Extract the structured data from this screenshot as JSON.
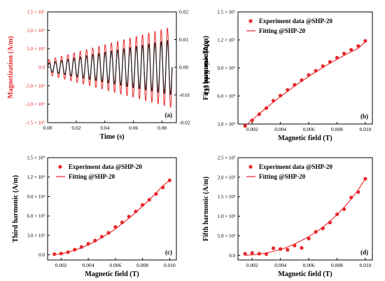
{
  "colors": {
    "red": "#e8262a",
    "dark": "#2a2a2a",
    "axis": "#000000"
  },
  "chart_data": [
    {
      "id": "a",
      "type": "line",
      "panel_label": "(a)",
      "xlabel": "Time (s)",
      "ylabel": "Magnetization (A/m)",
      "y2label": "Magnetic field (T)",
      "xlim": [
        0,
        0.09
      ],
      "ylim": [
        -150000,
        150000
      ],
      "y2lim": [
        -0.02,
        0.02
      ],
      "xticks": [
        "0.00",
        "0.02",
        "0.04",
        "0.06",
        "0.08"
      ],
      "yticks": [
        "1.5 × 10⁵",
        "1.0 × 10⁵",
        "5.0 × 10⁴",
        "0.0",
        "-5.0 × 10⁴",
        "-1.0 × 10⁵",
        "-1.5 × 10⁵"
      ],
      "y2ticks": [
        "0.02",
        "0.01",
        "0.00",
        "-0.01",
        "-0.02"
      ],
      "series": [
        {
          "axis": "left",
          "envelope_start": 20000,
          "envelope_end": 110000,
          "cycles": 20,
          "x_end": 0.087
        },
        {
          "axis": "right",
          "envelope_start": 0.0015,
          "envelope_end": 0.01,
          "cycles": 20,
          "x_end": 0.087
        }
      ]
    },
    {
      "id": "b",
      "type": "scatter",
      "panel_label": "(b)",
      "xlabel": "Magnetic field (T)",
      "ylabel": "First harmonic (A/m)",
      "xlim": [
        0.001,
        0.0105
      ],
      "ylim": [
        30000,
        150000
      ],
      "xticks": [
        "0.002",
        "0.004",
        "0.006",
        "0.008",
        "0.010"
      ],
      "yticks": [
        "1.5 × 10⁵",
        "1.2 × 10⁵",
        "9.0 × 10⁴",
        "6.0 × 10⁴",
        "3.0 × 10⁴"
      ],
      "legend": [
        "Experiment data @SHP-20",
        "Fitting @SHP-20"
      ],
      "x": [
        0.0015,
        0.002,
        0.0025,
        0.003,
        0.0035,
        0.004,
        0.0045,
        0.005,
        0.0055,
        0.006,
        0.0065,
        0.007,
        0.0075,
        0.008,
        0.0085,
        0.009,
        0.0095,
        0.01
      ],
      "y": [
        28000,
        34000,
        40500,
        47000,
        55000,
        60500,
        66500,
        72000,
        77000,
        82500,
        87000,
        92000,
        96500,
        101000,
        105500,
        109500,
        113500,
        119000
      ],
      "fit": [
        28000,
        34500,
        41000,
        47300,
        53400,
        59300,
        65000,
        70500,
        75800,
        80900,
        85800,
        90500,
        95000,
        99300,
        103400,
        107300,
        111000,
        118000
      ]
    },
    {
      "id": "c",
      "type": "scatter",
      "panel_label": "(c)",
      "xlabel": "Magnetic field (T)",
      "ylabel": "Third harmonic (A/m)",
      "xlim": [
        0.001,
        0.0105
      ],
      "ylim": [
        -800,
        15000
      ],
      "xticks": [
        "0.002",
        "0.004",
        "0.006",
        "0.008",
        "0.010"
      ],
      "yticks": [
        "1.5 × 10⁴",
        "1.2 × 10⁴",
        "9.0 × 10³",
        "6.0 × 10³",
        "3.0 × 10³",
        "0.0"
      ],
      "legend": [
        "Experiment data @SHP-20",
        "Fitting @SHP-20"
      ],
      "x": [
        0.0015,
        0.002,
        0.0025,
        0.003,
        0.0035,
        0.004,
        0.0045,
        0.005,
        0.0055,
        0.006,
        0.0065,
        0.007,
        0.0075,
        0.008,
        0.0085,
        0.009,
        0.0095,
        0.01
      ],
      "y": [
        100,
        200,
        400,
        800,
        1200,
        1700,
        2200,
        2800,
        3400,
        4300,
        5000,
        5900,
        6700,
        7700,
        8500,
        9400,
        10400,
        11500
      ],
      "fit": [
        0,
        150,
        400,
        700,
        1100,
        1550,
        2050,
        2650,
        3300,
        4000,
        4800,
        5650,
        6550,
        7500,
        8500,
        9550,
        10650,
        11500
      ]
    },
    {
      "id": "d",
      "type": "scatter",
      "panel_label": "(d)",
      "xlabel": "Magnetic field (T)",
      "ylabel": "Fifth harmonic (A/m)",
      "xlim": [
        0.001,
        0.0105
      ],
      "ylim": [
        -120,
        2500
      ],
      "xticks": [
        "0.002",
        "0.004",
        "0.006",
        "0.008",
        "0.010"
      ],
      "yticks": [
        "2.5 × 10³",
        "2.0 × 10³",
        "1.5 × 10³",
        "1.0 × 10³",
        "5.0 × 10²",
        "0.0"
      ],
      "legend": [
        "Experiment data @SHP-20",
        "Fitting @SHP-20"
      ],
      "x": [
        0.0015,
        0.002,
        0.0025,
        0.003,
        0.0035,
        0.004,
        0.0045,
        0.005,
        0.0055,
        0.006,
        0.0065,
        0.007,
        0.0075,
        0.008,
        0.0085,
        0.009,
        0.0095,
        0.01
      ],
      "y": [
        40,
        60,
        40,
        30,
        180,
        160,
        140,
        250,
        190,
        430,
        600,
        690,
        840,
        1050,
        1180,
        1480,
        1620,
        1960
      ],
      "fit": [
        0,
        10,
        30,
        60,
        100,
        150,
        210,
        290,
        380,
        480,
        590,
        720,
        870,
        1040,
        1230,
        1440,
        1680,
        1960
      ]
    }
  ]
}
